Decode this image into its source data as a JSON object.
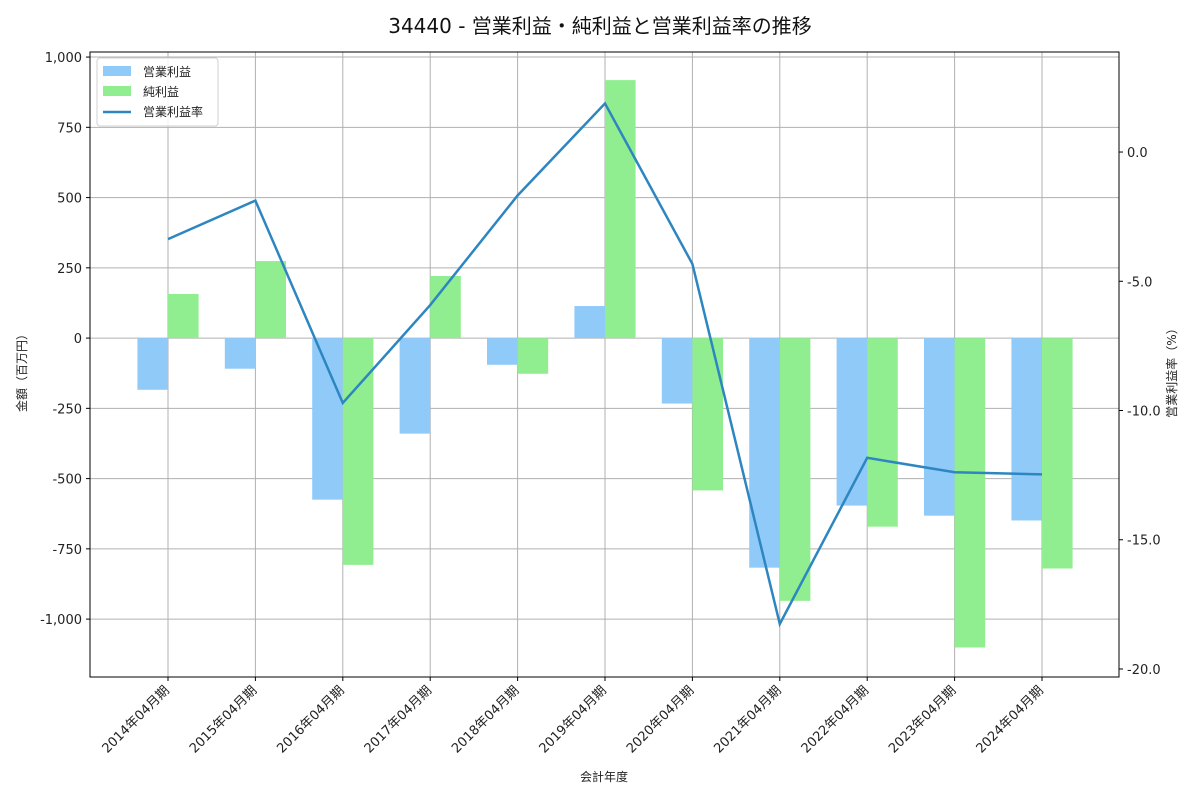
{
  "chart_data": {
    "type": "bar",
    "title": "34440 - 営業利益・純利益と営業利益率の推移",
    "xlabel": "会計年度",
    "ylabel": "金額（百万円）",
    "y2label": "営業利益率（%）",
    "categories": [
      "2014年04月期",
      "2015年04月期",
      "2016年04月期",
      "2017年04月期",
      "2018年04月期",
      "2019年04月期",
      "2020年04月期",
      "2021年04月期",
      "2022年04月期",
      "2023年04月期",
      "2024年04月期"
    ],
    "series": [
      {
        "name": "営業利益",
        "type": "bar",
        "axis": "left",
        "color": "#90CAF9",
        "values": [
          -184,
          -109,
          -575,
          -340,
          -95,
          114,
          -233,
          -817,
          -596,
          -632,
          -649
        ]
      },
      {
        "name": "純利益",
        "type": "bar",
        "axis": "left",
        "color": "#90EE90",
        "values": [
          157,
          274,
          -807,
          221,
          -127,
          918,
          -542,
          -935,
          -671,
          -1101,
          -820
        ]
      },
      {
        "name": "営業利益率",
        "type": "line",
        "axis": "right",
        "color": "#2E86C1",
        "values": [
          -3.37,
          -1.88,
          -9.71,
          -5.92,
          -1.68,
          1.88,
          -4.33,
          -18.26,
          -11.83,
          -12.39,
          -12.47
        ]
      }
    ],
    "ylim": [
      -1206,
      1018
    ],
    "y2lim": [
      -20.31,
      3.87
    ],
    "yticks": [
      -1000,
      -750,
      -500,
      -250,
      0,
      250,
      500,
      750,
      1000
    ],
    "ytick_labels": [
      "-1,000",
      "-750",
      "-500",
      "-250",
      "0",
      "250",
      "500",
      "750",
      "1,000"
    ],
    "y2ticks": [
      -20,
      -15,
      -10,
      -5,
      0
    ],
    "y2tick_labels": [
      "-20.0",
      "-15.0",
      "-10.0",
      "-5.0",
      "0.0"
    ],
    "grid": true,
    "legend_position": "upper left"
  }
}
